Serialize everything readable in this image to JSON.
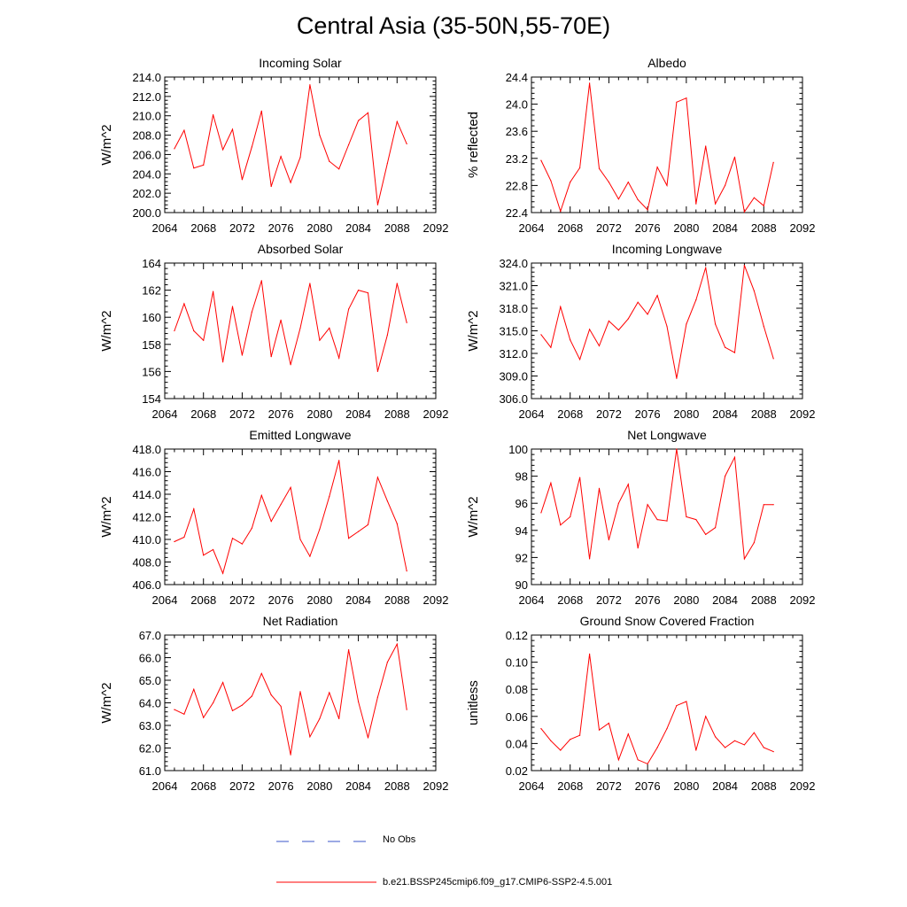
{
  "title": "Central Asia (35-50N,55-70E)",
  "legend": {
    "obs_label": "No Obs",
    "run_label": "b.e21.BSSP245cmip6.f09_g17.CMIP6-SSP2-4.5.001",
    "obs_color": "#3a55c8",
    "run_color": "#ff0000"
  },
  "chart_data": [
    {
      "type": "line",
      "title": "Incoming Solar",
      "ylabel": "W/m^2",
      "xlim": [
        2064,
        2092
      ],
      "ylim": [
        200,
        214
      ],
      "xticks": [
        2064,
        2068,
        2072,
        2076,
        2080,
        2084,
        2088,
        2092
      ],
      "yticks": [
        200,
        202,
        204,
        206,
        208,
        210,
        212,
        214
      ],
      "ytick_labels": [
        "200.0",
        "202.0",
        "204.0",
        "206.0",
        "208.0",
        "210.0",
        "212.0",
        "214.0"
      ],
      "x": [
        2065,
        2066,
        2067,
        2068,
        2069,
        2070,
        2071,
        2072,
        2073,
        2074,
        2075,
        2076,
        2077,
        2078,
        2079,
        2080,
        2081,
        2082,
        2083,
        2084,
        2085,
        2086,
        2087,
        2088,
        2089
      ],
      "series": [
        {
          "values": [
            206.6,
            208.5,
            204.6,
            204.9,
            210.1,
            206.5,
            208.6,
            203.4,
            206.8,
            210.5,
            202.7,
            205.8,
            203.1,
            205.7,
            213.2,
            208.0,
            205.3,
            204.5,
            207.0,
            209.5,
            210.3,
            200.8,
            205.1,
            209.4,
            207.1
          ]
        }
      ]
    },
    {
      "type": "line",
      "title": "Albedo",
      "ylabel": "% reflected",
      "xlim": [
        2064,
        2092
      ],
      "ylim": [
        22.4,
        24.4
      ],
      "xticks": [
        2064,
        2068,
        2072,
        2076,
        2080,
        2084,
        2088,
        2092
      ],
      "yticks": [
        22.4,
        22.8,
        23.2,
        23.6,
        24.0,
        24.4
      ],
      "ytick_labels": [
        "22.4",
        "22.8",
        "23.2",
        "23.6",
        "24.0",
        "24.4"
      ],
      "x": [
        2065,
        2066,
        2067,
        2068,
        2069,
        2070,
        2071,
        2072,
        2073,
        2074,
        2075,
        2076,
        2077,
        2078,
        2079,
        2080,
        2081,
        2082,
        2083,
        2084,
        2085,
        2086,
        2087,
        2088,
        2089
      ],
      "series": [
        {
          "values": [
            23.17,
            22.87,
            22.42,
            22.85,
            23.06,
            24.31,
            23.05,
            22.85,
            22.6,
            22.85,
            22.59,
            22.44,
            23.07,
            22.8,
            24.03,
            24.09,
            22.53,
            23.38,
            22.53,
            22.8,
            23.22,
            22.41,
            22.62,
            22.5,
            23.14
          ]
        }
      ]
    },
    {
      "type": "line",
      "title": "Absorbed Solar",
      "ylabel": "W/m^2",
      "xlim": [
        2064,
        2092
      ],
      "ylim": [
        154,
        164
      ],
      "xticks": [
        2064,
        2068,
        2072,
        2076,
        2080,
        2084,
        2088,
        2092
      ],
      "yticks": [
        154,
        156,
        158,
        160,
        162,
        164
      ],
      "ytick_labels": [
        "154",
        "156",
        "158",
        "160",
        "162",
        "164"
      ],
      "x": [
        2065,
        2066,
        2067,
        2068,
        2069,
        2070,
        2071,
        2072,
        2073,
        2074,
        2075,
        2076,
        2077,
        2078,
        2079,
        2080,
        2081,
        2082,
        2083,
        2084,
        2085,
        2086,
        2087,
        2088,
        2089
      ],
      "series": [
        {
          "values": [
            159.0,
            161.0,
            159.0,
            158.3,
            161.9,
            156.7,
            160.8,
            157.2,
            160.4,
            162.7,
            157.1,
            159.8,
            156.5,
            159.2,
            162.5,
            158.3,
            159.2,
            157.0,
            160.6,
            162.0,
            161.8,
            156.0,
            158.7,
            162.5,
            159.6
          ]
        }
      ]
    },
    {
      "type": "line",
      "title": "Incoming Longwave",
      "ylabel": "W/m^2",
      "xlim": [
        2064,
        2092
      ],
      "ylim": [
        306,
        324
      ],
      "xticks": [
        2064,
        2068,
        2072,
        2076,
        2080,
        2084,
        2088,
        2092
      ],
      "yticks": [
        306,
        309,
        312,
        315,
        318,
        321,
        324
      ],
      "ytick_labels": [
        "306.0",
        "309.0",
        "312.0",
        "315.0",
        "318.0",
        "321.0",
        "324.0"
      ],
      "x": [
        2065,
        2066,
        2067,
        2068,
        2069,
        2070,
        2071,
        2072,
        2073,
        2074,
        2075,
        2076,
        2077,
        2078,
        2079,
        2080,
        2081,
        2082,
        2083,
        2084,
        2085,
        2086,
        2087,
        2088,
        2089
      ],
      "series": [
        {
          "values": [
            314.5,
            312.8,
            318.2,
            313.8,
            311.2,
            315.2,
            313.0,
            316.3,
            315.1,
            316.6,
            318.8,
            317.2,
            319.7,
            315.6,
            308.7,
            315.9,
            319.1,
            323.4,
            315.9,
            312.8,
            312.1,
            323.7,
            320.3,
            315.6,
            311.3
          ]
        }
      ]
    },
    {
      "type": "line",
      "title": "Emitted Longwave",
      "ylabel": "W/m^2",
      "xlim": [
        2064,
        2092
      ],
      "ylim": [
        406,
        418
      ],
      "xticks": [
        2064,
        2068,
        2072,
        2076,
        2080,
        2084,
        2088,
        2092
      ],
      "yticks": [
        406,
        408,
        410,
        412,
        414,
        416,
        418
      ],
      "ytick_labels": [
        "406.0",
        "408.0",
        "410.0",
        "412.0",
        "414.0",
        "416.0",
        "418.0"
      ],
      "x": [
        2065,
        2066,
        2067,
        2068,
        2069,
        2070,
        2071,
        2072,
        2073,
        2074,
        2075,
        2076,
        2077,
        2078,
        2079,
        2080,
        2081,
        2082,
        2083,
        2084,
        2085,
        2086,
        2087,
        2088,
        2089
      ],
      "series": [
        {
          "values": [
            409.8,
            410.2,
            412.7,
            408.6,
            409.1,
            407.0,
            410.1,
            409.6,
            411.0,
            413.9,
            411.6,
            413.1,
            414.6,
            410.0,
            408.5,
            410.9,
            413.8,
            417.0,
            410.1,
            410.7,
            411.3,
            415.5,
            413.4,
            411.4,
            407.2
          ]
        }
      ]
    },
    {
      "type": "line",
      "title": "Net Longwave",
      "ylabel": "W/m^2",
      "xlim": [
        2064,
        2092
      ],
      "ylim": [
        90,
        100
      ],
      "xticks": [
        2064,
        2068,
        2072,
        2076,
        2080,
        2084,
        2088,
        2092
      ],
      "yticks": [
        90,
        92,
        94,
        96,
        98,
        100
      ],
      "ytick_labels": [
        "90",
        "92",
        "94",
        "96",
        "98",
        "100"
      ],
      "x": [
        2065,
        2066,
        2067,
        2068,
        2069,
        2070,
        2071,
        2072,
        2073,
        2074,
        2075,
        2076,
        2077,
        2078,
        2079,
        2080,
        2081,
        2082,
        2083,
        2084,
        2085,
        2086,
        2087,
        2088,
        2089
      ],
      "series": [
        {
          "values": [
            95.3,
            97.5,
            94.4,
            95.0,
            97.9,
            91.9,
            97.1,
            93.3,
            96.0,
            97.4,
            92.7,
            95.9,
            94.8,
            94.7,
            100.0,
            95.0,
            94.8,
            93.7,
            94.2,
            98.0,
            99.4,
            91.9,
            93.1,
            95.9,
            95.9
          ]
        }
      ]
    },
    {
      "type": "line",
      "title": "Net Radiation",
      "ylabel": "W/m^2",
      "xlim": [
        2064,
        2092
      ],
      "ylim": [
        61,
        67
      ],
      "xticks": [
        2064,
        2068,
        2072,
        2076,
        2080,
        2084,
        2088,
        2092
      ],
      "yticks": [
        61,
        62,
        63,
        64,
        65,
        66,
        67
      ],
      "ytick_labels": [
        "61.0",
        "62.0",
        "63.0",
        "64.0",
        "65.0",
        "66.0",
        "67.0"
      ],
      "x": [
        2065,
        2066,
        2067,
        2068,
        2069,
        2070,
        2071,
        2072,
        2073,
        2074,
        2075,
        2076,
        2077,
        2078,
        2079,
        2080,
        2081,
        2082,
        2083,
        2084,
        2085,
        2086,
        2087,
        2088,
        2089
      ],
      "series": [
        {
          "values": [
            63.7,
            63.5,
            64.6,
            63.35,
            64.0,
            64.9,
            63.65,
            63.9,
            64.3,
            65.3,
            64.35,
            63.85,
            61.7,
            64.5,
            62.5,
            63.3,
            64.45,
            63.3,
            66.35,
            64.05,
            62.45,
            64.25,
            65.8,
            66.6,
            63.7
          ]
        }
      ]
    },
    {
      "type": "line",
      "title": "Ground Snow Covered Fraction",
      "ylabel": "unitless",
      "xlim": [
        2064,
        2092
      ],
      "ylim": [
        0.02,
        0.12
      ],
      "xticks": [
        2064,
        2068,
        2072,
        2076,
        2080,
        2084,
        2088,
        2092
      ],
      "yticks": [
        0.02,
        0.04,
        0.06,
        0.08,
        0.1,
        0.12
      ],
      "ytick_labels": [
        "0.02",
        "0.04",
        "0.06",
        "0.08",
        "0.10",
        "0.12"
      ],
      "x": [
        2065,
        2066,
        2067,
        2068,
        2069,
        2070,
        2071,
        2072,
        2073,
        2074,
        2075,
        2076,
        2077,
        2078,
        2079,
        2080,
        2081,
        2082,
        2083,
        2084,
        2085,
        2086,
        2087,
        2088,
        2089
      ],
      "series": [
        {
          "values": [
            0.051,
            0.042,
            0.035,
            0.043,
            0.046,
            0.106,
            0.05,
            0.055,
            0.028,
            0.047,
            0.028,
            0.025,
            0.037,
            0.051,
            0.068,
            0.071,
            0.035,
            0.06,
            0.045,
            0.037,
            0.042,
            0.039,
            0.048,
            0.037,
            0.034
          ]
        }
      ]
    }
  ]
}
